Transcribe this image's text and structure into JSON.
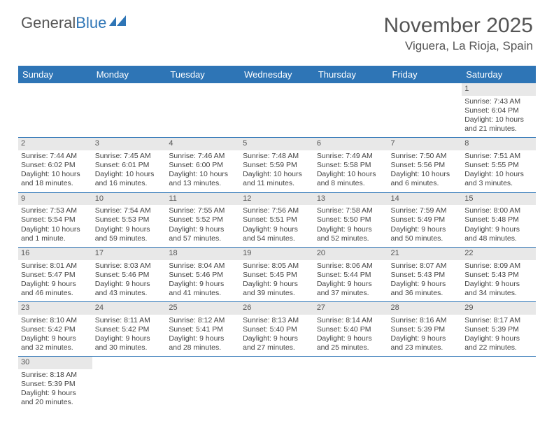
{
  "logo": {
    "part1": "General",
    "part2": "Blue"
  },
  "title": "November 2025",
  "location": "Viguera, La Rioja, Spain",
  "colors": {
    "header_bg": "#2e75b6",
    "header_text": "#ffffff",
    "daynum_bg": "#e8e8e8",
    "border": "#2e75b6",
    "text": "#444444",
    "title_text": "#555555"
  },
  "dayNames": [
    "Sunday",
    "Monday",
    "Tuesday",
    "Wednesday",
    "Thursday",
    "Friday",
    "Saturday"
  ],
  "weeks": [
    [
      null,
      null,
      null,
      null,
      null,
      null,
      {
        "n": "1",
        "sr": "Sunrise: 7:43 AM",
        "ss": "Sunset: 6:04 PM",
        "dl": "Daylight: 10 hours and 21 minutes."
      }
    ],
    [
      {
        "n": "2",
        "sr": "Sunrise: 7:44 AM",
        "ss": "Sunset: 6:02 PM",
        "dl": "Daylight: 10 hours and 18 minutes."
      },
      {
        "n": "3",
        "sr": "Sunrise: 7:45 AM",
        "ss": "Sunset: 6:01 PM",
        "dl": "Daylight: 10 hours and 16 minutes."
      },
      {
        "n": "4",
        "sr": "Sunrise: 7:46 AM",
        "ss": "Sunset: 6:00 PM",
        "dl": "Daylight: 10 hours and 13 minutes."
      },
      {
        "n": "5",
        "sr": "Sunrise: 7:48 AM",
        "ss": "Sunset: 5:59 PM",
        "dl": "Daylight: 10 hours and 11 minutes."
      },
      {
        "n": "6",
        "sr": "Sunrise: 7:49 AM",
        "ss": "Sunset: 5:58 PM",
        "dl": "Daylight: 10 hours and 8 minutes."
      },
      {
        "n": "7",
        "sr": "Sunrise: 7:50 AM",
        "ss": "Sunset: 5:56 PM",
        "dl": "Daylight: 10 hours and 6 minutes."
      },
      {
        "n": "8",
        "sr": "Sunrise: 7:51 AM",
        "ss": "Sunset: 5:55 PM",
        "dl": "Daylight: 10 hours and 3 minutes."
      }
    ],
    [
      {
        "n": "9",
        "sr": "Sunrise: 7:53 AM",
        "ss": "Sunset: 5:54 PM",
        "dl": "Daylight: 10 hours and 1 minute."
      },
      {
        "n": "10",
        "sr": "Sunrise: 7:54 AM",
        "ss": "Sunset: 5:53 PM",
        "dl": "Daylight: 9 hours and 59 minutes."
      },
      {
        "n": "11",
        "sr": "Sunrise: 7:55 AM",
        "ss": "Sunset: 5:52 PM",
        "dl": "Daylight: 9 hours and 57 minutes."
      },
      {
        "n": "12",
        "sr": "Sunrise: 7:56 AM",
        "ss": "Sunset: 5:51 PM",
        "dl": "Daylight: 9 hours and 54 minutes."
      },
      {
        "n": "13",
        "sr": "Sunrise: 7:58 AM",
        "ss": "Sunset: 5:50 PM",
        "dl": "Daylight: 9 hours and 52 minutes."
      },
      {
        "n": "14",
        "sr": "Sunrise: 7:59 AM",
        "ss": "Sunset: 5:49 PM",
        "dl": "Daylight: 9 hours and 50 minutes."
      },
      {
        "n": "15",
        "sr": "Sunrise: 8:00 AM",
        "ss": "Sunset: 5:48 PM",
        "dl": "Daylight: 9 hours and 48 minutes."
      }
    ],
    [
      {
        "n": "16",
        "sr": "Sunrise: 8:01 AM",
        "ss": "Sunset: 5:47 PM",
        "dl": "Daylight: 9 hours and 46 minutes."
      },
      {
        "n": "17",
        "sr": "Sunrise: 8:03 AM",
        "ss": "Sunset: 5:46 PM",
        "dl": "Daylight: 9 hours and 43 minutes."
      },
      {
        "n": "18",
        "sr": "Sunrise: 8:04 AM",
        "ss": "Sunset: 5:46 PM",
        "dl": "Daylight: 9 hours and 41 minutes."
      },
      {
        "n": "19",
        "sr": "Sunrise: 8:05 AM",
        "ss": "Sunset: 5:45 PM",
        "dl": "Daylight: 9 hours and 39 minutes."
      },
      {
        "n": "20",
        "sr": "Sunrise: 8:06 AM",
        "ss": "Sunset: 5:44 PM",
        "dl": "Daylight: 9 hours and 37 minutes."
      },
      {
        "n": "21",
        "sr": "Sunrise: 8:07 AM",
        "ss": "Sunset: 5:43 PM",
        "dl": "Daylight: 9 hours and 36 minutes."
      },
      {
        "n": "22",
        "sr": "Sunrise: 8:09 AM",
        "ss": "Sunset: 5:43 PM",
        "dl": "Daylight: 9 hours and 34 minutes."
      }
    ],
    [
      {
        "n": "23",
        "sr": "Sunrise: 8:10 AM",
        "ss": "Sunset: 5:42 PM",
        "dl": "Daylight: 9 hours and 32 minutes."
      },
      {
        "n": "24",
        "sr": "Sunrise: 8:11 AM",
        "ss": "Sunset: 5:42 PM",
        "dl": "Daylight: 9 hours and 30 minutes."
      },
      {
        "n": "25",
        "sr": "Sunrise: 8:12 AM",
        "ss": "Sunset: 5:41 PM",
        "dl": "Daylight: 9 hours and 28 minutes."
      },
      {
        "n": "26",
        "sr": "Sunrise: 8:13 AM",
        "ss": "Sunset: 5:40 PM",
        "dl": "Daylight: 9 hours and 27 minutes."
      },
      {
        "n": "27",
        "sr": "Sunrise: 8:14 AM",
        "ss": "Sunset: 5:40 PM",
        "dl": "Daylight: 9 hours and 25 minutes."
      },
      {
        "n": "28",
        "sr": "Sunrise: 8:16 AM",
        "ss": "Sunset: 5:39 PM",
        "dl": "Daylight: 9 hours and 23 minutes."
      },
      {
        "n": "29",
        "sr": "Sunrise: 8:17 AM",
        "ss": "Sunset: 5:39 PM",
        "dl": "Daylight: 9 hours and 22 minutes."
      }
    ],
    [
      {
        "n": "30",
        "sr": "Sunrise: 8:18 AM",
        "ss": "Sunset: 5:39 PM",
        "dl": "Daylight: 9 hours and 20 minutes."
      },
      null,
      null,
      null,
      null,
      null,
      null
    ]
  ]
}
